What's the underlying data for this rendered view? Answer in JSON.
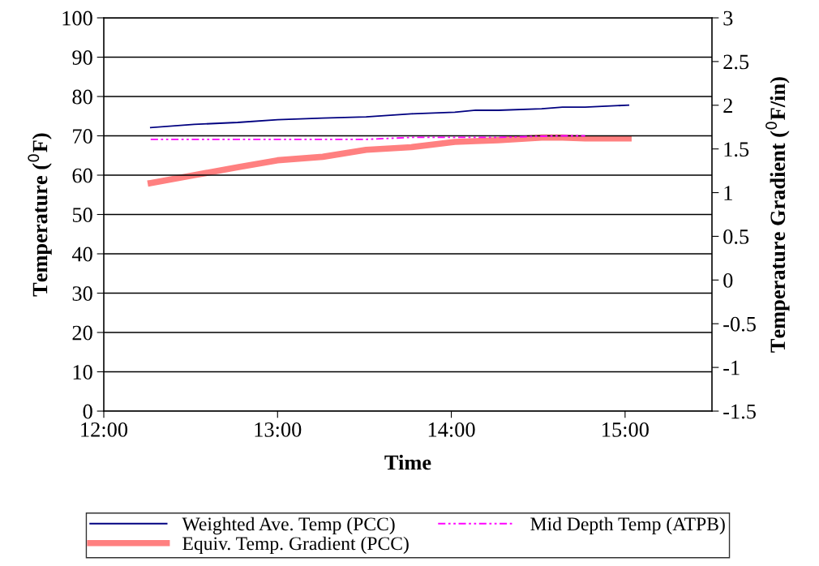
{
  "chart_data": {
    "type": "line",
    "xlabel": "Time",
    "ylabel": "Temperature ($^{0}$F)",
    "y2label": "Temperature Gradient ($^{0}$F/in)",
    "x": [
      12.27,
      12.52,
      12.77,
      13.0,
      13.26,
      13.51,
      13.77,
      14.02,
      14.14,
      14.27,
      14.52,
      14.64,
      14.77,
      15.02
    ],
    "series": [
      {
        "name": "Weighted Ave. Temp (PCC)",
        "color": "#000080",
        "line_style": "solid",
        "values": [
          72.1,
          72.9,
          73.4,
          74.1,
          74.5,
          74.8,
          75.6,
          76.0,
          76.5,
          76.5,
          76.9,
          77.3,
          77.3,
          77.8
        ]
      },
      {
        "name": "Mid Depth Temp (ATPB)",
        "color": "#ff00ff",
        "line_style": "dashdotdot",
        "values": [
          69.1,
          69.1,
          69.1,
          69.1,
          69.1,
          69.1,
          69.6,
          69.6,
          69.6,
          69.6,
          69.9,
          70.0,
          70.0,
          null
        ]
      },
      {
        "name": "Equiv. Temp. Gradient (PCC)",
        "color": "#ff8080",
        "line_style": "solid",
        "axis": "y2",
        "values": [
          1.11,
          1.2,
          1.29,
          1.37,
          1.41,
          1.49,
          1.52,
          1.58,
          1.59,
          1.6,
          1.63,
          1.63,
          1.62,
          1.62
        ]
      }
    ],
    "xlim": [
      12.0,
      15.5
    ],
    "xticks": [
      {
        "value": 12.0,
        "label": "12:00"
      },
      {
        "value": 13.0,
        "label": "13:00"
      },
      {
        "value": 14.0,
        "label": "14:00"
      },
      {
        "value": 15.0,
        "label": "15:00"
      }
    ],
    "ylim": [
      0,
      100
    ],
    "yticks": [
      0,
      10,
      20,
      30,
      40,
      50,
      60,
      70,
      80,
      90,
      100
    ],
    "y2lim": [
      -1.5,
      3
    ],
    "y2ticks": [
      -1.5,
      -1,
      -0.5,
      0,
      0.5,
      1,
      1.5,
      2,
      2.5,
      3
    ],
    "grid": "y",
    "legend": "bottom"
  }
}
